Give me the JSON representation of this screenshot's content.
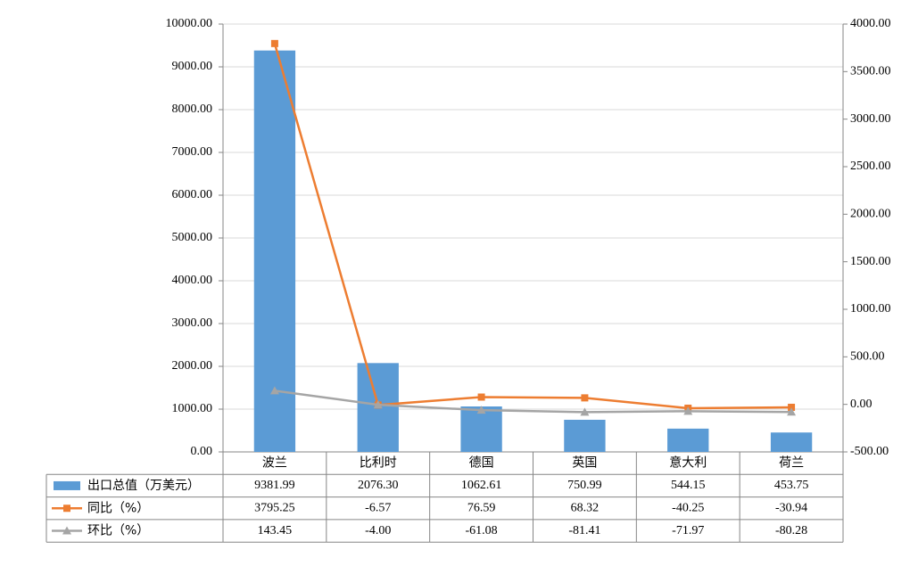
{
  "chart_data": {
    "type": "bar",
    "categories": [
      "波兰",
      "比利时",
      "德国",
      "英国",
      "意大利",
      "荷兰"
    ],
    "series": [
      {
        "name": "出口总值（万美元）",
        "type": "bar",
        "color": "#5b9bd5",
        "axis": "y",
        "values": [
          9381.99,
          2076.3,
          1062.61,
          750.99,
          544.15,
          453.75
        ],
        "value_labels": [
          "9381.99",
          "2076.30",
          "1062.61",
          "750.99",
          "544.15",
          "453.75"
        ]
      },
      {
        "name": "同比（%）",
        "type": "line",
        "marker": "square",
        "color": "#ed7d31",
        "axis": "y2",
        "values": [
          3795.25,
          -6.57,
          76.59,
          68.32,
          -40.25,
          -30.94
        ],
        "value_labels": [
          "3795.25",
          "-6.57",
          "76.59",
          "68.32",
          "-40.25",
          "-30.94"
        ]
      },
      {
        "name": "环比（%）",
        "type": "line",
        "marker": "triangle",
        "color": "#a5a5a5",
        "axis": "y2",
        "values": [
          143.45,
          -4.0,
          -61.08,
          -81.41,
          -71.97,
          -80.28
        ],
        "value_labels": [
          "143.45",
          "-4.00",
          "-61.08",
          "-81.41",
          "-71.97",
          "-80.28"
        ]
      }
    ],
    "ylim": [
      0,
      10000
    ],
    "yticks": [
      {
        "value": 0,
        "label": "0.00"
      },
      {
        "value": 1000,
        "label": "1000.00"
      },
      {
        "value": 2000,
        "label": "2000.00"
      },
      {
        "value": 3000,
        "label": "3000.00"
      },
      {
        "value": 4000,
        "label": "4000.00"
      },
      {
        "value": 5000,
        "label": "5000.00"
      },
      {
        "value": 6000,
        "label": "6000.00"
      },
      {
        "value": 7000,
        "label": "7000.00"
      },
      {
        "value": 8000,
        "label": "8000.00"
      },
      {
        "value": 9000,
        "label": "9000.00"
      },
      {
        "value": 10000,
        "label": "10000.00"
      }
    ],
    "y2lim": [
      -500,
      4000
    ],
    "y2ticks": [
      {
        "value": -500,
        "label": "-500.00"
      },
      {
        "value": 0,
        "label": "0.00"
      },
      {
        "value": 500,
        "label": "500.00"
      },
      {
        "value": 1000,
        "label": "1000.00"
      },
      {
        "value": 1500,
        "label": "1500.00"
      },
      {
        "value": 2000,
        "label": "2000.00"
      },
      {
        "value": 2500,
        "label": "2500.00"
      },
      {
        "value": 3000,
        "label": "3000.00"
      },
      {
        "value": 3500,
        "label": "3500.00"
      },
      {
        "value": 4000,
        "label": "4000.00"
      }
    ],
    "grid": true,
    "legend": "table"
  }
}
